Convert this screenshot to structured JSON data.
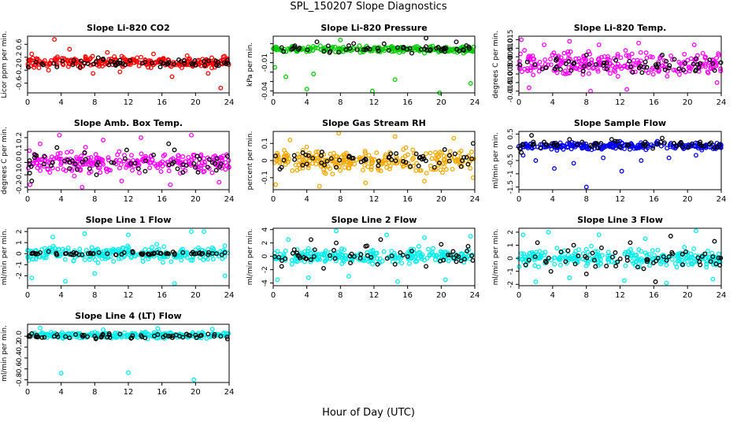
{
  "figure": {
    "title": "SPL_150207  Slope Diagnostics",
    "xlabel": "Hour of Day (UTC)"
  },
  "chart_data": [
    {
      "type": "scatter",
      "title": "Slope Li-820 CO2",
      "ylabel": "Licor ppm per min.",
      "xlim": [
        0,
        24
      ],
      "ylim": [
        -0.9,
        0.85
      ],
      "xticks": [
        0,
        4,
        8,
        12,
        16,
        20,
        24
      ],
      "yticks": [
        -0.6,
        -0.2,
        0.2,
        0.6
      ],
      "ytick_labels": [
        "-0.6",
        "-0.2",
        "0.2",
        "0.6"
      ],
      "color": "#ff0000",
      "series": [
        {
          "color_role": "main",
          "center": 0.05,
          "spread": 0.15,
          "x": [
            0.5,
            2.5,
            3.2,
            5.0,
            7.8,
            9.5,
            11.0,
            13.5,
            15.0,
            17.2,
            19.0,
            21.5,
            23.0
          ],
          "y": [
            0.3,
            -0.2,
            0.75,
            0.45,
            -0.3,
            0.35,
            -0.25,
            0.2,
            0.3,
            -0.4,
            0.25,
            -0.3,
            -0.75
          ]
        },
        {
          "color_role": "black",
          "center": 0.02,
          "spread": 0.12,
          "x": [
            1.0,
            3.5,
            5.5,
            7.2,
            9.0,
            10.5,
            12.2,
            14.0,
            15.8,
            18.0,
            19.5,
            21.0,
            22.5,
            23.8
          ],
          "y": [
            0.05,
            -0.1,
            0.1,
            0.0,
            0.15,
            -0.05,
            0.1,
            0.05,
            -0.1,
            0.12,
            0.0,
            0.08,
            -0.05,
            0.1
          ]
        }
      ]
    },
    {
      "type": "scatter",
      "title": "Slope Li-820 Pressure",
      "ylabel": "kPa per min.",
      "xlim": [
        0,
        24
      ],
      "ylim": [
        -0.042,
        0.018
      ],
      "xticks": [
        0,
        4,
        8,
        12,
        16,
        20,
        24
      ],
      "yticks": [
        -0.04,
        -0.03,
        -0.02,
        -0.01,
        0.0,
        0.01
      ],
      "ytick_labels": [
        "-0.04",
        "",
        "",
        "-0.01",
        "",
        ""
      ],
      "color": "#00cc00",
      "series": [
        {
          "color_role": "main",
          "center": 0.004,
          "spread": 0.003,
          "x": [
            0.2,
            1.5,
            4.0,
            4.8,
            8.0,
            11.8,
            14.5,
            19.8,
            23.5
          ],
          "y": [
            -0.015,
            -0.025,
            -0.038,
            -0.022,
            0.014,
            -0.04,
            -0.028,
            -0.042,
            -0.032
          ]
        },
        {
          "color_role": "black",
          "center": 0.005,
          "spread": 0.004,
          "x": [
            1.0,
            3.0,
            5.2,
            6.8,
            9.0,
            11.0,
            13.2,
            14.8,
            16.5,
            18.2,
            20.0,
            21.8,
            23.0
          ],
          "y": [
            0.006,
            0.004,
            0.012,
            0.002,
            0.008,
            0.004,
            0.01,
            0.006,
            0.0,
            0.016,
            0.003,
            0.012,
            0.008
          ]
        }
      ]
    },
    {
      "type": "scatter",
      "title": "Slope Li-820 Temp.",
      "ylabel": "degrees C per min.",
      "xlim": [
        0,
        24
      ],
      "ylim": [
        -0.016,
        0.017
      ],
      "xticks": [
        0,
        4,
        8,
        12,
        16,
        20,
        24
      ],
      "yticks": [
        -0.015,
        -0.01,
        -0.005,
        0.0,
        0.005,
        0.01,
        0.015
      ],
      "ytick_labels": [
        "-0.015",
        "-0.010",
        "-0.005",
        "0.000",
        "0.005",
        "0.010",
        "0.015"
      ],
      "color": "#ff00ff",
      "series": [
        {
          "color_role": "main",
          "center": 0.001,
          "spread": 0.006,
          "x": [
            0.3,
            1.2,
            3.0,
            6.0,
            8.5,
            9.5,
            12.8,
            14.2,
            20.8,
            23.5
          ],
          "y": [
            0.015,
            -0.013,
            0.012,
            0.014,
            -0.015,
            0.012,
            -0.014,
            0.013,
            0.012,
            -0.01
          ]
        },
        {
          "color_role": "black",
          "center": 0.0,
          "spread": 0.004,
          "x": [
            1.0,
            2.8,
            4.5,
            6.2,
            8.0,
            10.0,
            11.5,
            13.5,
            15.0,
            17.0,
            19.0,
            21.0,
            23.0
          ],
          "y": [
            0.002,
            -0.002,
            0.004,
            -0.003,
            0.006,
            0.0,
            0.003,
            -0.004,
            0.002,
            0.006,
            -0.002,
            0.004,
            0.001
          ]
        }
      ]
    },
    {
      "type": "scatter",
      "title": "Slope Amb. Box Temp.",
      "ylabel": "degrees C per min.",
      "xlim": [
        0,
        24
      ],
      "ylim": [
        -0.22,
        0.25
      ],
      "xticks": [
        0,
        4,
        8,
        12,
        16,
        20,
        24
      ],
      "yticks": [
        -0.2,
        -0.1,
        0.0,
        0.1,
        0.2
      ],
      "ytick_labels": [
        "-0.2",
        "-0.1",
        "0.0",
        "0.1",
        "0.2"
      ],
      "color": "#ff00ff",
      "series": [
        {
          "color_role": "main",
          "center": 0.0,
          "spread": 0.08,
          "x": [
            0.3,
            1.5,
            3.8,
            6.5,
            9.0,
            11.2,
            13.5,
            17.0,
            19.5,
            22.8
          ],
          "y": [
            -0.18,
            0.15,
            0.22,
            -0.2,
            0.18,
            -0.15,
            0.2,
            -0.18,
            0.22,
            -0.16
          ]
        },
        {
          "color_role": "black",
          "center": 0.0,
          "spread": 0.07,
          "x": [
            0.5,
            2.0,
            3.5,
            5.0,
            6.8,
            8.2,
            10.0,
            11.8,
            13.2,
            15.0,
            16.8,
            18.5,
            20.2,
            22.0,
            23.8
          ],
          "y": [
            -0.15,
            0.05,
            0.12,
            -0.05,
            0.08,
            -0.1,
            0.0,
            0.1,
            -0.05,
            0.06,
            0.15,
            -0.08,
            0.05,
            0.0,
            0.05
          ]
        }
      ]
    },
    {
      "type": "scatter",
      "title": "Slope Gas Stream RH",
      "ylabel": "percent per min.",
      "xlim": [
        0,
        24
      ],
      "ylim": [
        -0.17,
        0.17
      ],
      "xticks": [
        0,
        4,
        8,
        12,
        16,
        20,
        24
      ],
      "yticks": [
        -0.1,
        0.0,
        0.1
      ],
      "ytick_labels": [
        "-0.1",
        "0",
        "0.1"
      ],
      "color": "#f5a800",
      "series": [
        {
          "color_role": "main",
          "center": 0.0,
          "spread": 0.06,
          "x": [
            0.3,
            2.0,
            5.5,
            7.8,
            11.0,
            14.5,
            18.0,
            21.5,
            23.8
          ],
          "y": [
            -0.14,
            0.12,
            -0.15,
            0.16,
            -0.13,
            0.14,
            -0.12,
            0.13,
            -0.1
          ]
        },
        {
          "color_role": "black",
          "center": 0.0,
          "spread": 0.05,
          "x": [
            0.8,
            2.5,
            4.0,
            5.8,
            7.5,
            9.0,
            10.8,
            12.5,
            14.0,
            15.8,
            17.5,
            19.2,
            21.0,
            22.5,
            23.8
          ],
          "y": [
            -0.05,
            0.03,
            -0.02,
            0.05,
            -0.04,
            0.02,
            0.0,
            -0.03,
            0.04,
            -0.01,
            0.02,
            -0.04,
            0.03,
            0.0,
            0.1
          ]
        }
      ]
    },
    {
      "type": "scatter",
      "title": "Slope Sample Flow",
      "ylabel": "ml/min per min.",
      "xlim": [
        0,
        24
      ],
      "ylim": [
        -1.6,
        0.6
      ],
      "xticks": [
        0,
        4,
        8,
        12,
        16,
        20,
        24
      ],
      "yticks": [
        -1.5,
        -1.0,
        -0.5,
        0.0,
        0.5
      ],
      "ytick_labels": [
        "-1.5",
        "-1",
        "-0.5",
        "0",
        "0.5"
      ],
      "color": "#0000ee",
      "series": [
        {
          "color_role": "main",
          "center": 0.05,
          "spread": 0.12,
          "x": [
            0.5,
            2.0,
            4.2,
            6.5,
            8.0,
            10.0,
            12.2,
            14.5,
            17.8,
            21.0
          ],
          "y": [
            -0.3,
            -0.5,
            -0.8,
            -0.6,
            -1.5,
            -0.4,
            -0.9,
            -0.5,
            -0.4,
            -0.3
          ]
        },
        {
          "color_role": "black",
          "center": 0.1,
          "spread": 0.15,
          "x": [
            0.3,
            1.5,
            3.0,
            4.5,
            6.0,
            7.5,
            9.2,
            11.0,
            13.0,
            15.0,
            17.0,
            19.0,
            21.5,
            23.5
          ],
          "y": [
            -0.2,
            0.45,
            0.2,
            0.1,
            0.3,
            0.2,
            0.15,
            0.3,
            0.1,
            0.2,
            0.35,
            0.1,
            0.2,
            0.0
          ]
        }
      ]
    },
    {
      "type": "scatter",
      "title": "Slope Line 1 Flow",
      "ylabel": "ml/min per min.",
      "xlim": [
        0,
        24
      ],
      "ylim": [
        -2.9,
        2.3
      ],
      "xticks": [
        0,
        4,
        8,
        12,
        16,
        20,
        24
      ],
      "yticks": [
        -2,
        -1,
        0,
        1,
        2
      ],
      "ytick_labels": [
        "-2",
        "-1",
        "0",
        "1",
        "2"
      ],
      "color": "#00eeee",
      "series": [
        {
          "color_role": "main",
          "center": 0.0,
          "spread": 0.6,
          "x": [
            0.5,
            3.0,
            4.5,
            6.8,
            8.0,
            12.0,
            17.5,
            19.5,
            21.0,
            23.5
          ],
          "y": [
            -2.2,
            1.5,
            -2.5,
            1.8,
            -1.8,
            1.7,
            -2.7,
            2.0,
            2.0,
            -2.0
          ]
        },
        {
          "color_role": "black",
          "center": 0.0,
          "spread": 0.12,
          "x": [
            0.5,
            1.5,
            2.5,
            3.5,
            4.5,
            5.5,
            6.5,
            7.5,
            8.5,
            9.5,
            10.5,
            11.5,
            12.5,
            13.5,
            14.5,
            15.5,
            16.5,
            17.5,
            18.5,
            19.5,
            20.5,
            21.5,
            22.5,
            23.5
          ],
          "y": [
            0.0,
            0.1,
            0.2,
            -0.1,
            0.0,
            0.1,
            -0.1,
            0.0,
            0.1,
            0.0,
            -0.1,
            0.1,
            0.2,
            0.0,
            -0.1,
            0.1,
            0.0,
            -0.1,
            0.1,
            0.0,
            0.1,
            -0.1,
            0.0,
            0.1
          ]
        }
      ]
    },
    {
      "type": "scatter",
      "title": "Slope Line 2 Flow",
      "ylabel": "ml/min per min.",
      "xlim": [
        0,
        24
      ],
      "ylim": [
        -4.4,
        4.2
      ],
      "xticks": [
        0,
        4,
        8,
        12,
        16,
        20,
        24
      ],
      "yticks": [
        -4,
        -2,
        0,
        2,
        4
      ],
      "ytick_labels": [
        "-4",
        "-2",
        "0",
        "2",
        "4"
      ],
      "color": "#00eeee",
      "series": [
        {
          "color_role": "main",
          "center": 0.0,
          "spread": 1.0,
          "x": [
            0.5,
            1.8,
            4.2,
            7.5,
            9.0,
            13.5,
            14.8,
            18.0,
            20.5,
            23.5
          ],
          "y": [
            -3.5,
            2.5,
            -3.2,
            3.8,
            -3.0,
            3.2,
            -3.8,
            2.8,
            -3.5,
            3.0
          ]
        },
        {
          "color_role": "black",
          "center": 0.0,
          "spread": 1.2,
          "x": [
            1.0,
            2.5,
            4.5,
            6.0,
            7.5,
            9.2,
            11.0,
            12.8,
            14.5,
            16.5,
            18.2,
            20.0,
            21.8,
            23.2
          ],
          "y": [
            -1.5,
            1.0,
            2.5,
            -1.8,
            2.0,
            -1.0,
            1.5,
            2.5,
            -1.2,
            0.8,
            -1.5,
            1.8,
            -0.8,
            1.5
          ]
        }
      ]
    },
    {
      "type": "scatter",
      "title": "Slope Line 3 Flow",
      "ylabel": "ml/min per min.",
      "xlim": [
        0,
        24
      ],
      "ylim": [
        -2.1,
        2.3
      ],
      "xticks": [
        0,
        4,
        8,
        12,
        16,
        20,
        24
      ],
      "yticks": [
        -2,
        -1,
        0,
        1,
        2
      ],
      "ytick_labels": [
        "-2",
        "-1",
        "0",
        "1",
        "2"
      ],
      "color": "#00eeee",
      "series": [
        {
          "color_role": "main",
          "center": 0.0,
          "spread": 0.6,
          "x": [
            0.5,
            2.0,
            3.5,
            6.0,
            9.5,
            12.5,
            15.0,
            17.5,
            21.0,
            23.0
          ],
          "y": [
            1.8,
            -1.8,
            2.0,
            -1.5,
            1.8,
            -1.7,
            1.5,
            -1.9,
            2.1,
            -1.6
          ]
        },
        {
          "color_role": "black",
          "center": 0.0,
          "spread": 0.7,
          "x": [
            0.8,
            2.2,
            3.8,
            5.0,
            6.5,
            8.0,
            9.8,
            11.5,
            13.2,
            14.8,
            16.2,
            18.0,
            19.8,
            21.5,
            23.2
          ],
          "y": [
            -0.5,
            1.2,
            -1.0,
            0.5,
            1.0,
            -1.2,
            0.8,
            -0.6,
            1.2,
            -0.8,
            -1.8,
            1.7,
            0.5,
            -0.5,
            1.3
          ]
        }
      ]
    },
    {
      "type": "scatter",
      "title": "Slope Line 4 (LT) Flow",
      "ylabel": "ml/min per min.",
      "xlim": [
        0,
        24
      ],
      "ylim": [
        -0.85,
        0.22
      ],
      "xticks": [
        0,
        4,
        8,
        12,
        16,
        20,
        24
      ],
      "yticks": [
        -0.8,
        -0.6,
        -0.4,
        -0.2,
        0.0
      ],
      "ytick_labels": [
        "-0.8",
        "-0.6",
        "-0.4",
        "-0.2",
        "0.0"
      ],
      "color": "#00eeee",
      "series": [
        {
          "color_role": "main",
          "center": 0.02,
          "spread": 0.05,
          "x": [
            4.0,
            12.0,
            19.8,
            1.5,
            9.0,
            15.5,
            22.0
          ],
          "y": [
            -0.68,
            -0.67,
            -0.8,
            0.15,
            0.12,
            0.14,
            0.13
          ]
        },
        {
          "color_role": "black",
          "center": 0.0,
          "spread": 0.04,
          "x": [
            0.5,
            2.0,
            3.5,
            5.0,
            6.5,
            8.0,
            9.5,
            11.0,
            12.5,
            14.0,
            15.5,
            17.0,
            18.5,
            20.0,
            21.5,
            23.0,
            23.8
          ],
          "y": [
            0.05,
            -0.02,
            0.03,
            -0.03,
            0.02,
            0.0,
            -0.02,
            0.04,
            0.01,
            -0.03,
            0.03,
            0.0,
            -0.02,
            0.02,
            0.04,
            0.0,
            -0.05
          ]
        }
      ]
    }
  ]
}
